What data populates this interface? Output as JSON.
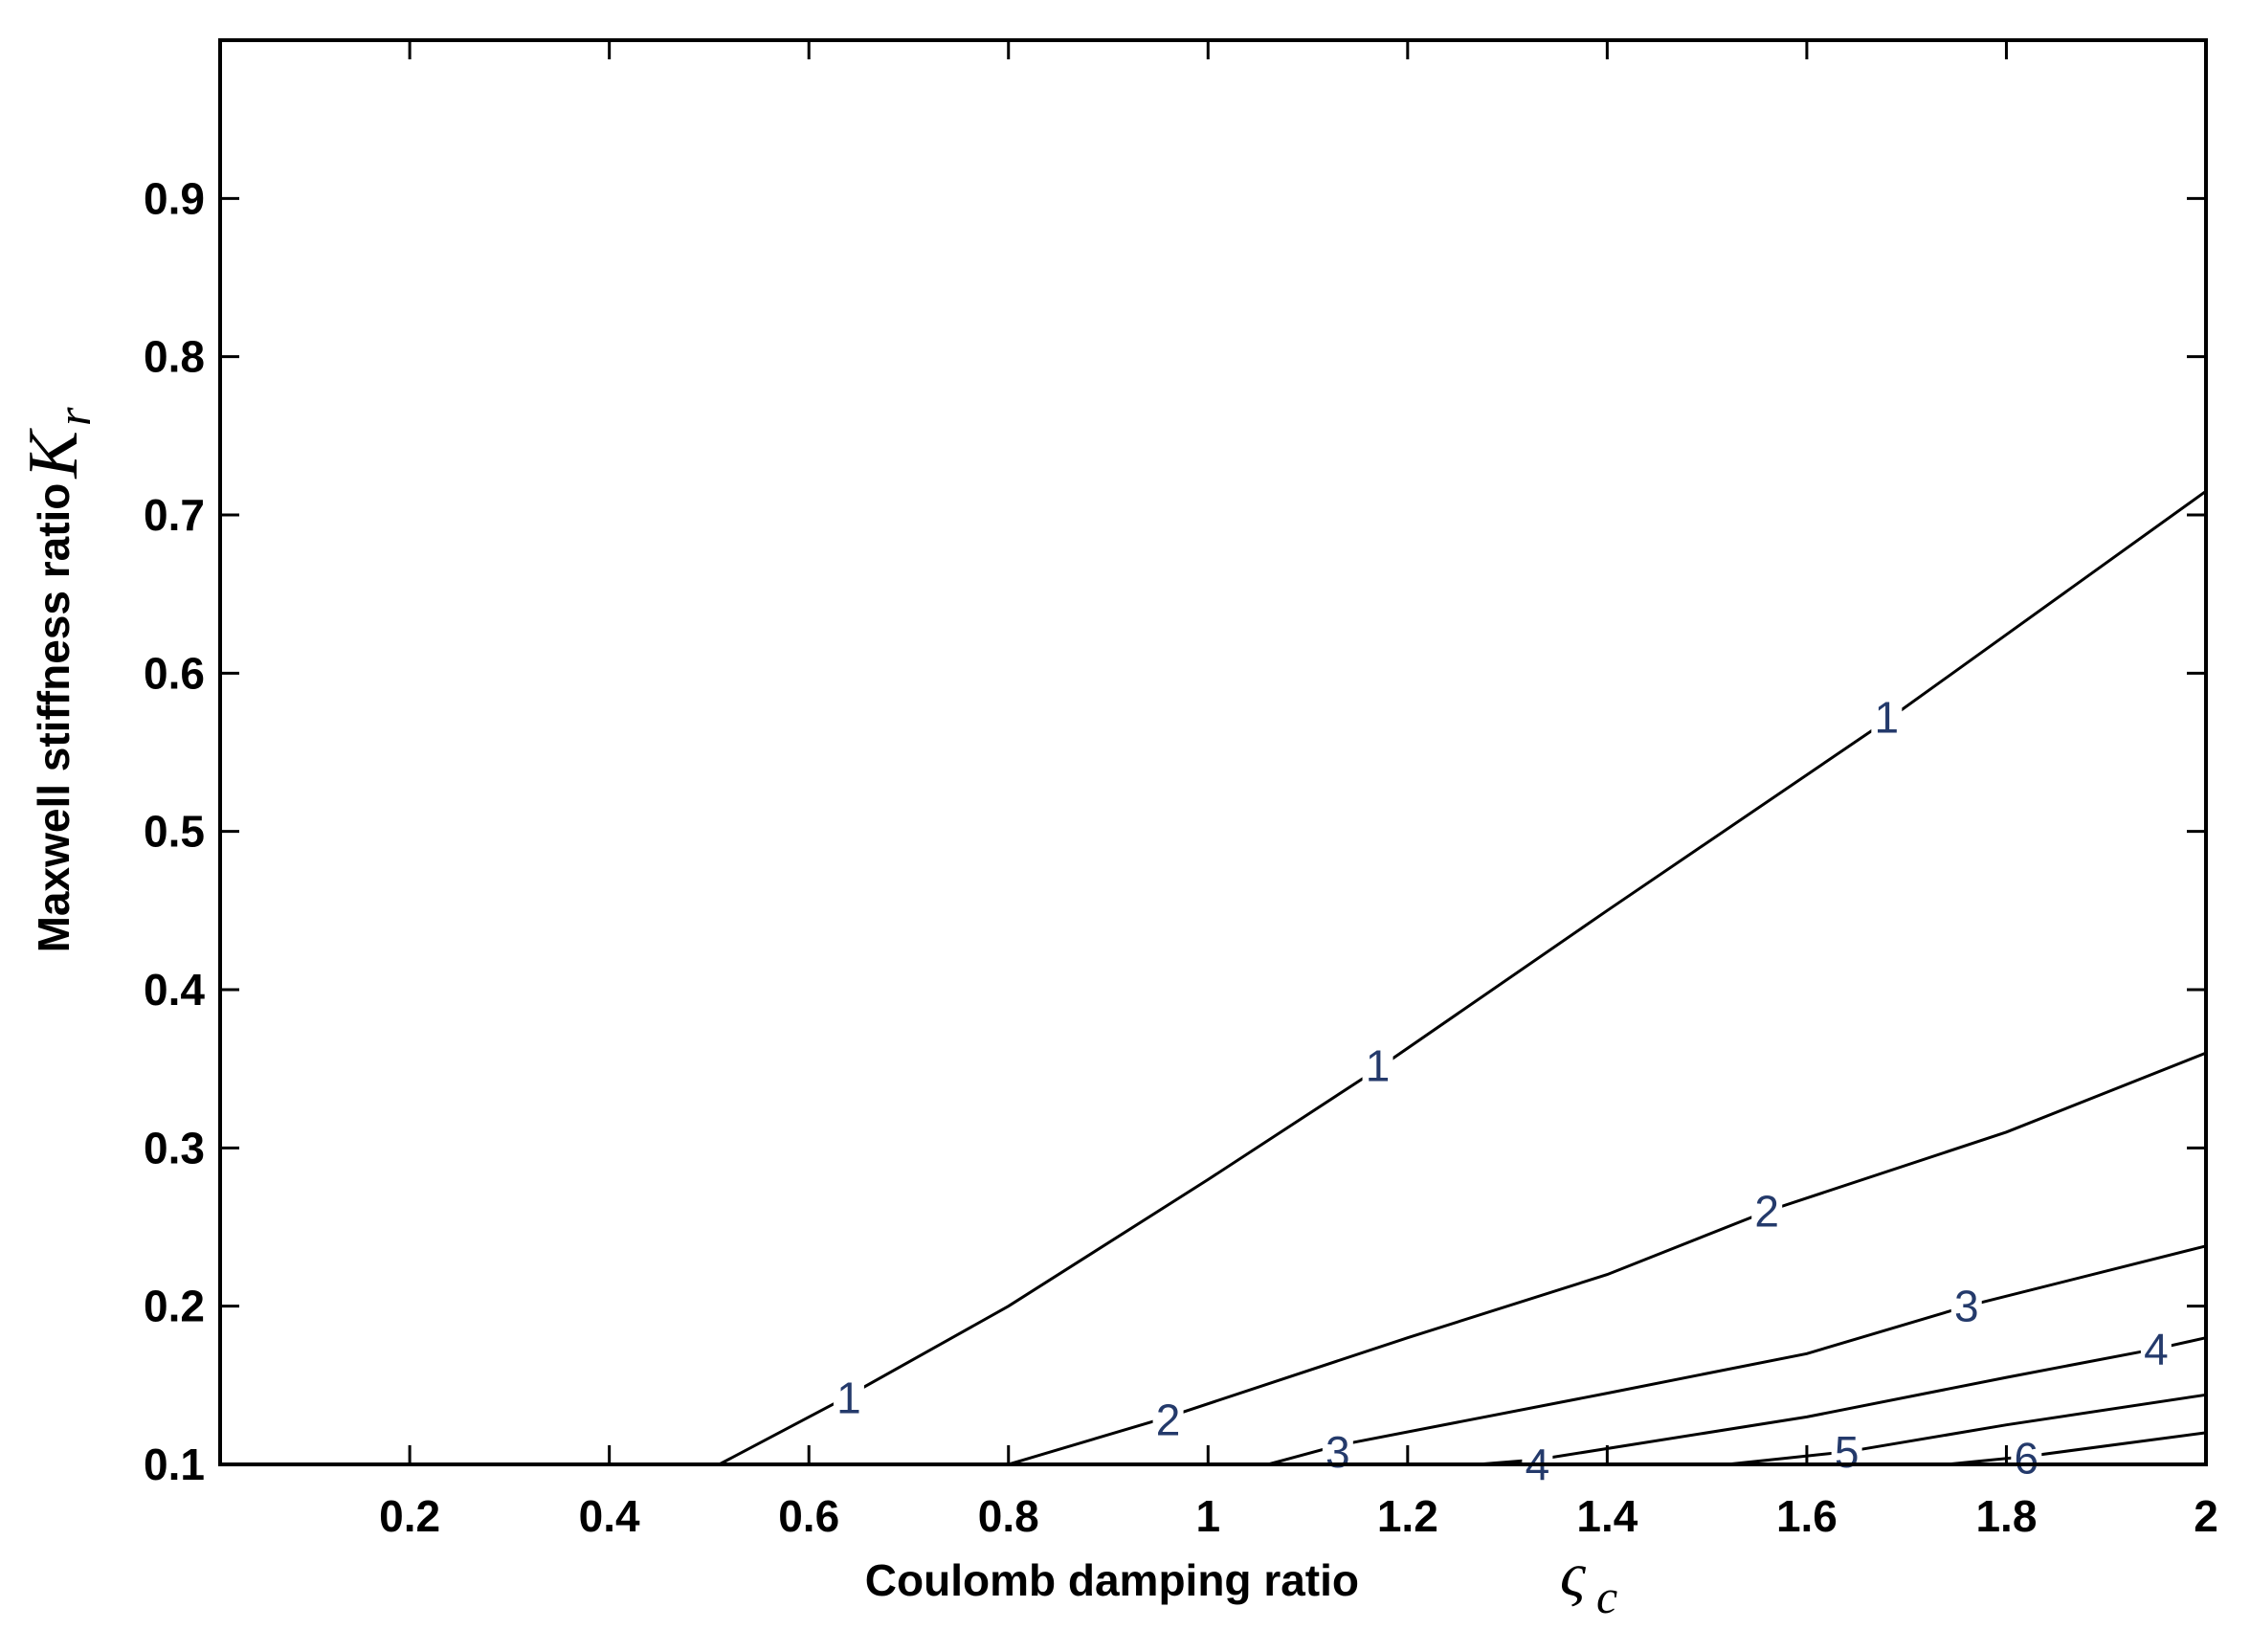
{
  "chart_data": {
    "type": "line",
    "subtype": "contour",
    "xlabel": "Coulomb damping ratio",
    "xlabel_symbol": "ς",
    "xlabel_symbol_sub": "c",
    "ylabel": "Maxwell stiffness ratio",
    "ylabel_symbol": "K",
    "ylabel_symbol_sub": "r",
    "xlim": [
      0.01,
      2.0
    ],
    "ylim": [
      0.1,
      1.0
    ],
    "x_ticks": [
      0.2,
      0.4,
      0.6,
      0.8,
      1,
      1.2,
      1.4,
      1.6,
      1.8,
      2
    ],
    "x_tick_labels": [
      "0.2",
      "0.4",
      "0.6",
      "0.8",
      "1",
      "1.2",
      "1.4",
      "1.6",
      "1.8",
      "2"
    ],
    "y_ticks": [
      0.1,
      0.2,
      0.3,
      0.4,
      0.5,
      0.6,
      0.7,
      0.8,
      0.9
    ],
    "y_tick_labels": [
      "0.1",
      "0.2",
      "0.3",
      "0.4",
      "0.5",
      "0.6",
      "0.7",
      "0.8",
      "0.9"
    ],
    "grid": false,
    "series": [
      {
        "label": "1",
        "x": [
          0.51,
          0.63,
          0.8,
          1.0,
          1.17,
          1.4,
          1.68,
          2.0
        ],
        "y": [
          0.1,
          0.14,
          0.2,
          0.28,
          0.35,
          0.45,
          0.57,
          0.715
        ]
      },
      {
        "label": "2",
        "x": [
          0.8,
          0.96,
          1.2,
          1.4,
          1.56,
          1.8,
          2.0
        ],
        "y": [
          0.1,
          0.13,
          0.18,
          0.22,
          0.26,
          0.31,
          0.36
        ]
      },
      {
        "label": "3",
        "x": [
          1.06,
          1.13,
          1.4,
          1.6,
          1.76,
          2.0
        ],
        "y": [
          0.1,
          0.112,
          0.145,
          0.17,
          0.2,
          0.238
        ]
      },
      {
        "label": "4",
        "x": [
          1.27,
          1.33,
          1.6,
          1.8,
          1.95,
          2.0
        ],
        "y": [
          0.1,
          0.103,
          0.13,
          0.155,
          0.173,
          0.18
        ]
      },
      {
        "label": "5",
        "x": [
          1.52,
          1.64,
          1.8,
          2.0
        ],
        "y": [
          0.1,
          0.108,
          0.125,
          0.144
        ]
      },
      {
        "label": "6",
        "x": [
          1.74,
          1.82,
          2.0
        ],
        "y": [
          0.1,
          0.105,
          0.12
        ]
      }
    ],
    "contour_labels": [
      {
        "text": "1",
        "x": 0.64,
        "y": 0.142
      },
      {
        "text": "1",
        "x": 1.17,
        "y": 0.352
      },
      {
        "text": "1",
        "x": 1.68,
        "y": 0.572
      },
      {
        "text": "2",
        "x": 0.96,
        "y": 0.128
      },
      {
        "text": "2",
        "x": 1.56,
        "y": 0.26
      },
      {
        "text": "3",
        "x": 1.13,
        "y": 0.108
      },
      {
        "text": "3",
        "x": 1.76,
        "y": 0.2
      },
      {
        "text": "4",
        "x": 1.33,
        "y": 0.1
      },
      {
        "text": "4",
        "x": 1.95,
        "y": 0.173
      },
      {
        "text": "5",
        "x": 1.64,
        "y": 0.108
      },
      {
        "text": "6",
        "x": 1.82,
        "y": 0.104
      }
    ]
  }
}
